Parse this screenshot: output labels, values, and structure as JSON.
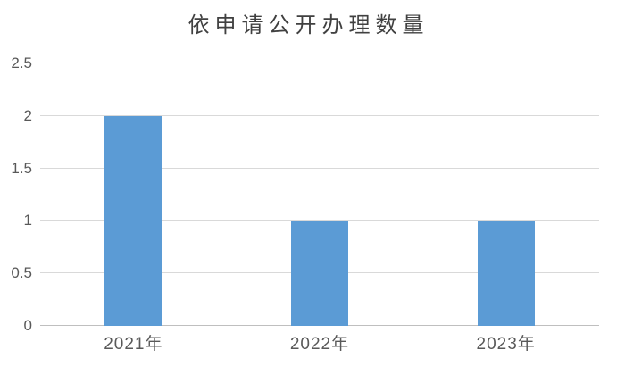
{
  "chart_data": {
    "type": "bar",
    "title": "依申请公开办理数量",
    "categories": [
      "2021年",
      "2022年",
      "2023年"
    ],
    "values": [
      2,
      1,
      1
    ],
    "xlabel": "",
    "ylabel": "",
    "ylim": [
      0,
      2.5
    ],
    "ytick_step": 0.5,
    "ytick_labels": [
      "0",
      "0.5",
      "1",
      "1.5",
      "2",
      "2.5"
    ],
    "grid": true,
    "legend": false,
    "colors": {
      "bar": "#5b9bd5",
      "gridline": "#d9d9d9",
      "axis_line": "#bfbfbf",
      "tick_label": "#595959",
      "title": "#404040"
    }
  }
}
